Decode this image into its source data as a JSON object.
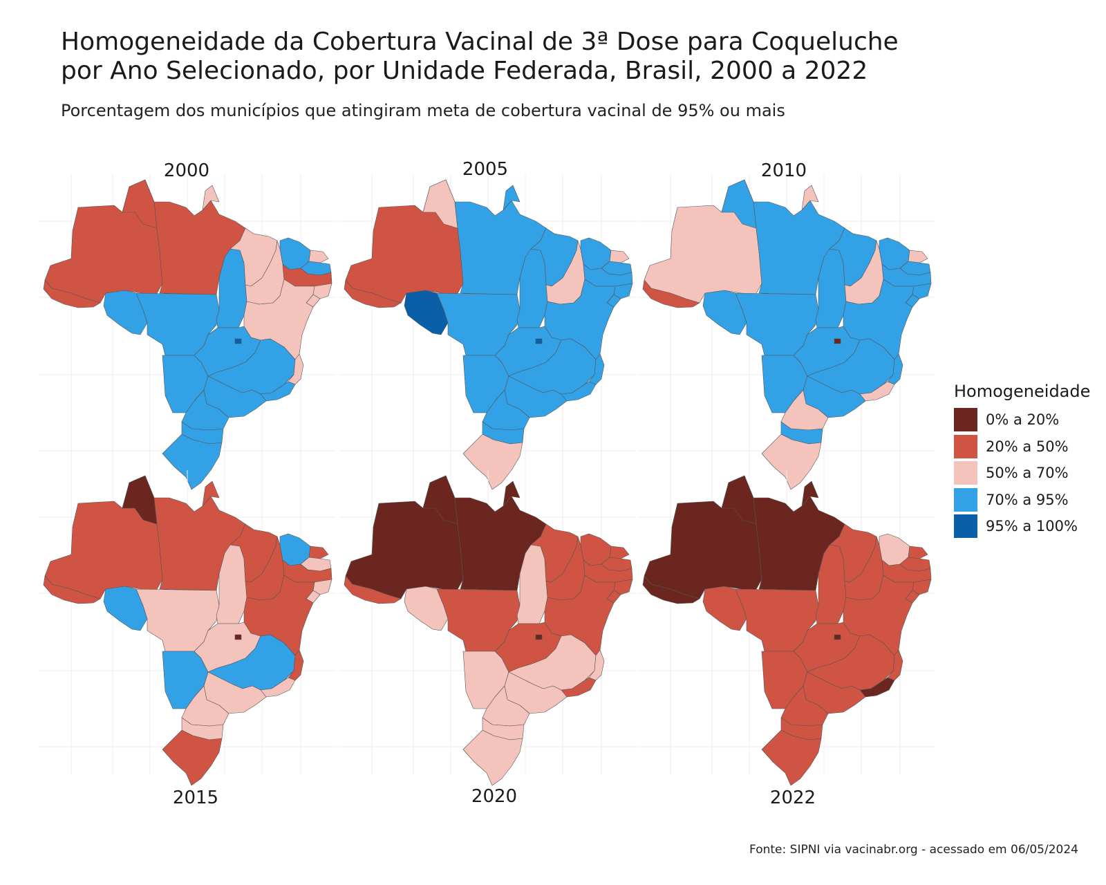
{
  "title_line1": "Homogeneidade da Cobertura Vacinal de 3ª Dose para Coqueluche",
  "title_line2": "por Ano Selecionado, por Unidade Federada, Brasil, 2000 a 2022",
  "subtitle": "Porcentagem dos municípios que atingiram meta de cobertura vacinal de 95% ou mais",
  "caption": "Fonte: SIPNI via vacinabr.org - acessado em 06/05/2024",
  "legend": {
    "title": "Homogeneidade",
    "items": [
      {
        "key": "c1",
        "label": "0% a 20%",
        "color": "#6b2620"
      },
      {
        "key": "c2",
        "label": "20% a 50%",
        "color": "#d05443"
      },
      {
        "key": "c3",
        "label": "50% a 70%",
        "color": "#f4c3bc"
      },
      {
        "key": "c4",
        "label": "70% a 95%",
        "color": "#33a1e6"
      },
      {
        "key": "c5",
        "label": "95% a 100%",
        "color": "#0b5fa8"
      }
    ]
  },
  "chart_data": {
    "type": "choropleth",
    "unit": "Unidade Federada",
    "years": [
      "2000",
      "2005",
      "2010",
      "2015",
      "2020",
      "2022"
    ],
    "classes_by_year": {
      "2000": {
        "AC": "c2",
        "AM": "c2",
        "RR": "c2",
        "PA": "c2",
        "AP": "c3",
        "RO": "c4",
        "TO": "c4",
        "MA": "c3",
        "PI": "c3",
        "CE": "c4",
        "RN": "c3",
        "PB": "c4",
        "PE": "c2",
        "AL": "c3",
        "SE": "c3",
        "BA": "c3",
        "MT": "c4",
        "MS": "c4",
        "GO": "c4",
        "DF": "c5",
        "MG": "c4",
        "ES": "c3",
        "RJ": "c4",
        "SP": "c4",
        "PR": "c4",
        "SC": "c4",
        "RS": "c4"
      },
      "2005": {
        "AC": "c2",
        "AM": "c2",
        "RR": "c3",
        "PA": "c4",
        "AP": "c4",
        "RO": "c5",
        "TO": "c4",
        "MA": "c4",
        "PI": "c3",
        "CE": "c4",
        "RN": "c3",
        "PB": "c4",
        "PE": "c4",
        "AL": "c4",
        "SE": "c4",
        "BA": "c4",
        "MT": "c4",
        "MS": "c4",
        "GO": "c4",
        "DF": "c5",
        "MG": "c4",
        "ES": "c4",
        "RJ": "c4",
        "SP": "c4",
        "PR": "c4",
        "SC": "c4",
        "RS": "c3"
      },
      "2010": {
        "AC": "c2",
        "AM": "c3",
        "RR": "c4",
        "PA": "c4",
        "AP": "c3",
        "RO": "c4",
        "TO": "c4",
        "MA": "c4",
        "PI": "c3",
        "CE": "c4",
        "RN": "c3",
        "PB": "c4",
        "PE": "c4",
        "AL": "c4",
        "SE": "c4",
        "BA": "c4",
        "MT": "c4",
        "MS": "c4",
        "GO": "c4",
        "DF": "c1",
        "MG": "c4",
        "ES": "c4",
        "RJ": "c3",
        "SP": "c4",
        "PR": "c3",
        "SC": "c4",
        "RS": "c3"
      },
      "2015": {
        "AC": "c2",
        "AM": "c2",
        "RR": "c1",
        "PA": "c2",
        "AP": "c2",
        "RO": "c4",
        "TO": "c3",
        "MA": "c2",
        "PI": "c2",
        "CE": "c4",
        "RN": "c2",
        "PB": "c3",
        "PE": "c2",
        "AL": "c3",
        "SE": "c3",
        "BA": "c2",
        "MT": "c3",
        "MS": "c4",
        "GO": "c3",
        "DF": "c1",
        "MG": "c4",
        "ES": "c2",
        "RJ": "c3",
        "SP": "c3",
        "PR": "c3",
        "SC": "c3",
        "RS": "c2"
      },
      "2020": {
        "AC": "c2",
        "AM": "c1",
        "RR": "c1",
        "PA": "c1",
        "AP": "c1",
        "RO": "c3",
        "TO": "c3",
        "MA": "c2",
        "PI": "c2",
        "CE": "c2",
        "RN": "c2",
        "PB": "c2",
        "PE": "c2",
        "AL": "c2",
        "SE": "c2",
        "BA": "c2",
        "MT": "c2",
        "MS": "c3",
        "GO": "c2",
        "DF": "c1",
        "MG": "c3",
        "ES": "c3",
        "RJ": "c2",
        "SP": "c3",
        "PR": "c3",
        "SC": "c3",
        "RS": "c3"
      },
      "2022": {
        "AC": "c1",
        "AM": "c1",
        "RR": "c1",
        "PA": "c1",
        "AP": "c1",
        "RO": "c2",
        "TO": "c2",
        "MA": "c2",
        "PI": "c2",
        "CE": "c3",
        "RN": "c2",
        "PB": "c2",
        "PE": "c2",
        "AL": "c2",
        "SE": "c2",
        "BA": "c2",
        "MT": "c2",
        "MS": "c2",
        "GO": "c2",
        "DF": "c1",
        "MG": "c2",
        "ES": "c2",
        "RJ": "c1",
        "SP": "c2",
        "PR": "c2",
        "SC": "c2",
        "RS": "c2"
      }
    }
  }
}
